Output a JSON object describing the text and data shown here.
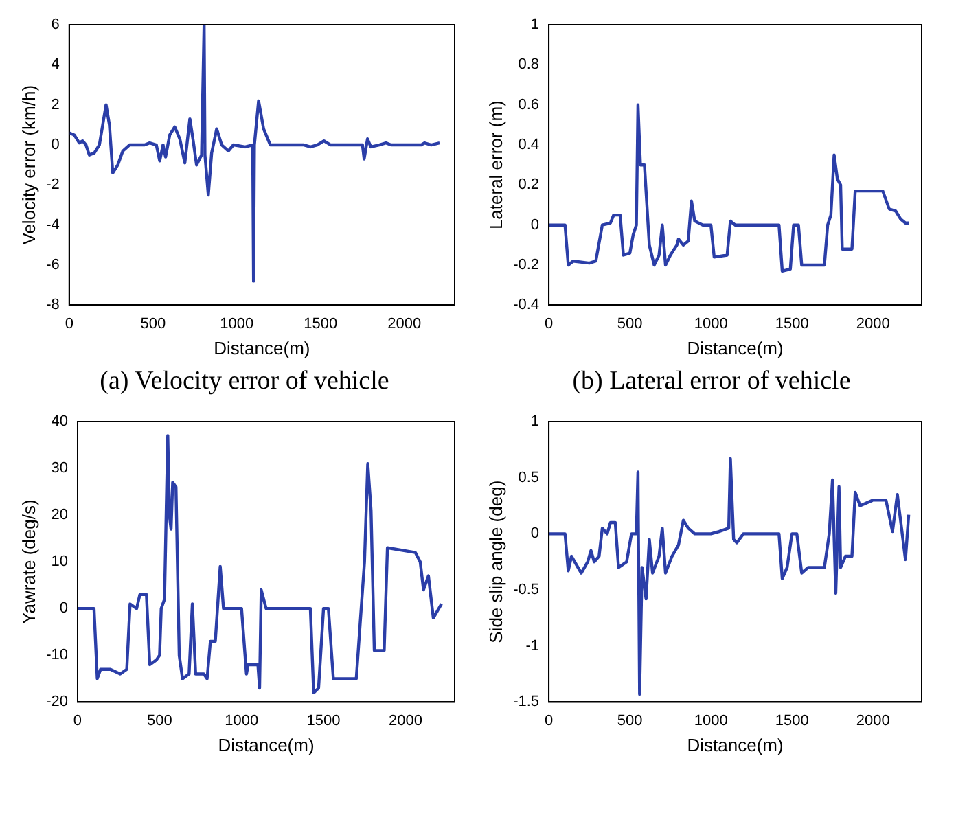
{
  "chart_data": [
    {
      "type": "line",
      "xlabel": "Distance(m)",
      "ylabel": "Velocity error (km/h)",
      "annotations": [
        "(a) Velocity error of vehicle"
      ],
      "xlim": [
        0,
        2300
      ],
      "xticks": [
        0,
        500,
        1000,
        1500,
        2000
      ],
      "ylim": [
        -8,
        6
      ],
      "yticks": [
        -8,
        -6,
        -4,
        -2,
        0,
        2,
        4,
        6
      ],
      "grid": false,
      "legend": false,
      "series": [
        {
          "color": "#2b3ea8",
          "x": [
            0,
            30,
            60,
            80,
            100,
            120,
            150,
            180,
            200,
            220,
            240,
            260,
            290,
            320,
            360,
            450,
            480,
            520,
            540,
            560,
            575,
            600,
            630,
            660,
            690,
            720,
            740,
            760,
            790,
            805,
            810,
            830,
            850,
            880,
            910,
            950,
            980,
            1050,
            1095,
            1100,
            1105,
            1130,
            1160,
            1200,
            1400,
            1440,
            1480,
            1520,
            1560,
            1750,
            1760,
            1780,
            1800,
            1850,
            1890,
            1920,
            2100,
            2120,
            2160,
            2210
          ],
          "values": [
            0.6,
            0.5,
            0.1,
            0.2,
            0,
            -0.5,
            -0.4,
            0,
            1,
            2,
            1,
            -1.4,
            -1,
            -0.3,
            0,
            0,
            0.1,
            0,
            -0.8,
            0,
            -0.6,
            0.5,
            0.9,
            0.3,
            -0.9,
            1.3,
            0.2,
            -1,
            -0.5,
            6,
            -0.5,
            -2.5,
            -0.4,
            0.8,
            0,
            -0.3,
            0,
            -0.1,
            0,
            -6.8,
            0,
            2.2,
            0.8,
            0,
            0,
            -0.1,
            0,
            0.2,
            0,
            0,
            -0.7,
            0.3,
            -0.1,
            0,
            0.1,
            0,
            0,
            0.1,
            0,
            0.1
          ]
        }
      ]
    },
    {
      "type": "line",
      "xlabel": "Distance(m)",
      "ylabel": "Lateral error (m)",
      "annotations": [
        "(b) Lateral error of vehicle"
      ],
      "xlim": [
        0,
        2300
      ],
      "xticks": [
        0,
        500,
        1000,
        1500,
        2000
      ],
      "ylim": [
        -0.4,
        1
      ],
      "yticks": [
        -0.4,
        -0.2,
        0,
        0.2,
        0.4,
        0.6,
        0.8,
        1
      ],
      "grid": false,
      "legend": false,
      "series": [
        {
          "color": "#2b3ea8",
          "x": [
            0,
            100,
            120,
            150,
            250,
            290,
            330,
            380,
            400,
            440,
            460,
            500,
            520,
            540,
            550,
            565,
            590,
            620,
            650,
            680,
            700,
            720,
            750,
            790,
            800,
            830,
            860,
            880,
            900,
            950,
            1000,
            1020,
            1100,
            1120,
            1150,
            1420,
            1440,
            1490,
            1510,
            1540,
            1560,
            1700,
            1720,
            1740,
            1760,
            1780,
            1800,
            1810,
            1870,
            1890,
            2060,
            2100,
            2140,
            2170,
            2200,
            2220
          ],
          "values": [
            0,
            0,
            -0.2,
            -0.18,
            -0.19,
            -0.18,
            0,
            0.01,
            0.05,
            0.05,
            -0.15,
            -0.14,
            -0.05,
            0,
            0.6,
            0.3,
            0.3,
            -0.1,
            -0.2,
            -0.15,
            0,
            -0.2,
            -0.15,
            -0.1,
            -0.07,
            -0.1,
            -0.08,
            0.12,
            0.02,
            0,
            0,
            -0.16,
            -0.15,
            0.02,
            0,
            0,
            -0.23,
            -0.22,
            0,
            0,
            -0.2,
            -0.2,
            0,
            0.05,
            0.35,
            0.23,
            0.2,
            -0.12,
            -0.12,
            0.17,
            0.17,
            0.08,
            0.07,
            0.03,
            0.01,
            0.01
          ]
        }
      ]
    },
    {
      "type": "line",
      "xlabel": "Distance(m)",
      "ylabel": "Yawrate (deg/s)",
      "xlim": [
        0,
        2300
      ],
      "xticks": [
        0,
        500,
        1000,
        1500,
        2000
      ],
      "ylim": [
        -20,
        40
      ],
      "yticks": [
        -20,
        -10,
        0,
        10,
        20,
        30,
        40
      ],
      "grid": false,
      "legend": false,
      "series": [
        {
          "color": "#2b3ea8",
          "x": [
            0,
            100,
            120,
            140,
            200,
            260,
            300,
            320,
            360,
            380,
            420,
            440,
            480,
            500,
            510,
            530,
            550,
            560,
            570,
            580,
            600,
            620,
            640,
            680,
            700,
            720,
            770,
            790,
            810,
            840,
            870,
            890,
            1000,
            1030,
            1040,
            1100,
            1110,
            1120,
            1150,
            1420,
            1440,
            1470,
            1500,
            1530,
            1560,
            1700,
            1730,
            1750,
            1770,
            1790,
            1810,
            1870,
            1890,
            2060,
            2090,
            2110,
            2140,
            2170,
            2220
          ],
          "values": [
            0,
            0,
            -15,
            -13,
            -13,
            -14,
            -13,
            1,
            0,
            3,
            3,
            -12,
            -11,
            -10,
            0,
            2,
            37,
            20,
            17,
            27,
            26,
            -10,
            -15,
            -14,
            1,
            -14,
            -14,
            -15,
            -7,
            -7,
            9,
            0,
            0,
            -14,
            -12,
            -12,
            -17,
            4,
            0,
            0,
            -18,
            -17,
            0,
            0,
            -15,
            -15,
            0,
            10,
            31,
            21,
            -9,
            -9,
            13,
            12,
            10,
            4,
            7,
            -2,
            1
          ]
        }
      ]
    },
    {
      "type": "line",
      "xlabel": "Distance(m)",
      "ylabel": "Side slip angle (deg)",
      "xlim": [
        0,
        2300
      ],
      "xticks": [
        0,
        500,
        1000,
        1500,
        2000
      ],
      "ylim": [
        -1.5,
        1
      ],
      "yticks": [
        -1.5,
        -1,
        -0.5,
        0,
        0.5,
        1
      ],
      "grid": false,
      "legend": false,
      "series": [
        {
          "color": "#2b3ea8",
          "x": [
            0,
            100,
            120,
            140,
            200,
            240,
            260,
            280,
            310,
            330,
            360,
            380,
            410,
            430,
            480,
            510,
            540,
            550,
            560,
            575,
            600,
            620,
            640,
            680,
            700,
            720,
            760,
            800,
            830,
            860,
            900,
            1000,
            1050,
            1110,
            1120,
            1140,
            1160,
            1200,
            1420,
            1440,
            1470,
            1500,
            1530,
            1560,
            1600,
            1700,
            1730,
            1750,
            1770,
            1790,
            1800,
            1830,
            1870,
            1890,
            1920,
            2000,
            2080,
            2120,
            2150,
            2200,
            2220
          ],
          "values": [
            0,
            0,
            -0.33,
            -0.2,
            -0.35,
            -0.25,
            -0.15,
            -0.25,
            -0.2,
            0.05,
            0,
            0.1,
            0.1,
            -0.3,
            -0.25,
            0,
            0,
            0.55,
            -1.43,
            -0.3,
            -0.58,
            -0.05,
            -0.35,
            -0.2,
            0.05,
            -0.35,
            -0.2,
            -0.1,
            0.12,
            0.05,
            0,
            0,
            0.02,
            0.05,
            0.67,
            -0.05,
            -0.08,
            0,
            0,
            -0.4,
            -0.3,
            0,
            0,
            -0.35,
            -0.3,
            -0.3,
            0,
            0.48,
            -0.53,
            0.42,
            -0.3,
            -0.2,
            -0.2,
            0.37,
            0.25,
            0.3,
            0.3,
            0.02,
            0.35,
            -0.23,
            0.17
          ]
        }
      ]
    }
  ]
}
